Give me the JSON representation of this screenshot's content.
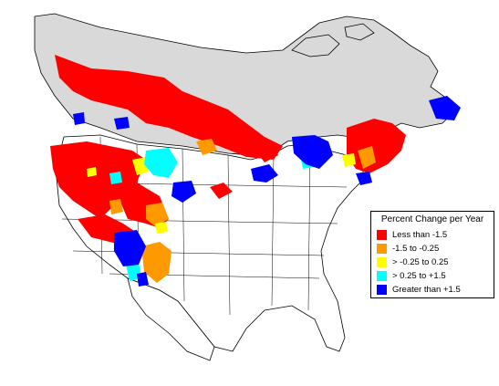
{
  "colors": {
    "background": "#ffffff",
    "canada_fill": "#d9d9d9",
    "us_fill": "#ffffff",
    "border": "#000000",
    "less_than": "#ff0000",
    "decrease": "#ff9900",
    "stable": "#ffff00",
    "increase": "#00ffff",
    "greater_than": "#0000ff"
  },
  "legend": {
    "title": "Percent Change per Year",
    "items": [
      {
        "label": "Less than -1.5",
        "color": "#ff0000",
        "icon": "red-square"
      },
      {
        "label": "-1.5 to -0.25",
        "color": "#ff9900",
        "icon": "orange-square"
      },
      {
        "label": "> -0.25 to 0.25",
        "color": "#ffff00",
        "icon": "yellow-square"
      },
      {
        "label": "> 0.25 to +1.5",
        "color": "#00ffff",
        "icon": "cyan-square"
      },
      {
        "label": "Greater than +1.5",
        "color": "#0000ff",
        "icon": "blue-square"
      }
    ]
  }
}
